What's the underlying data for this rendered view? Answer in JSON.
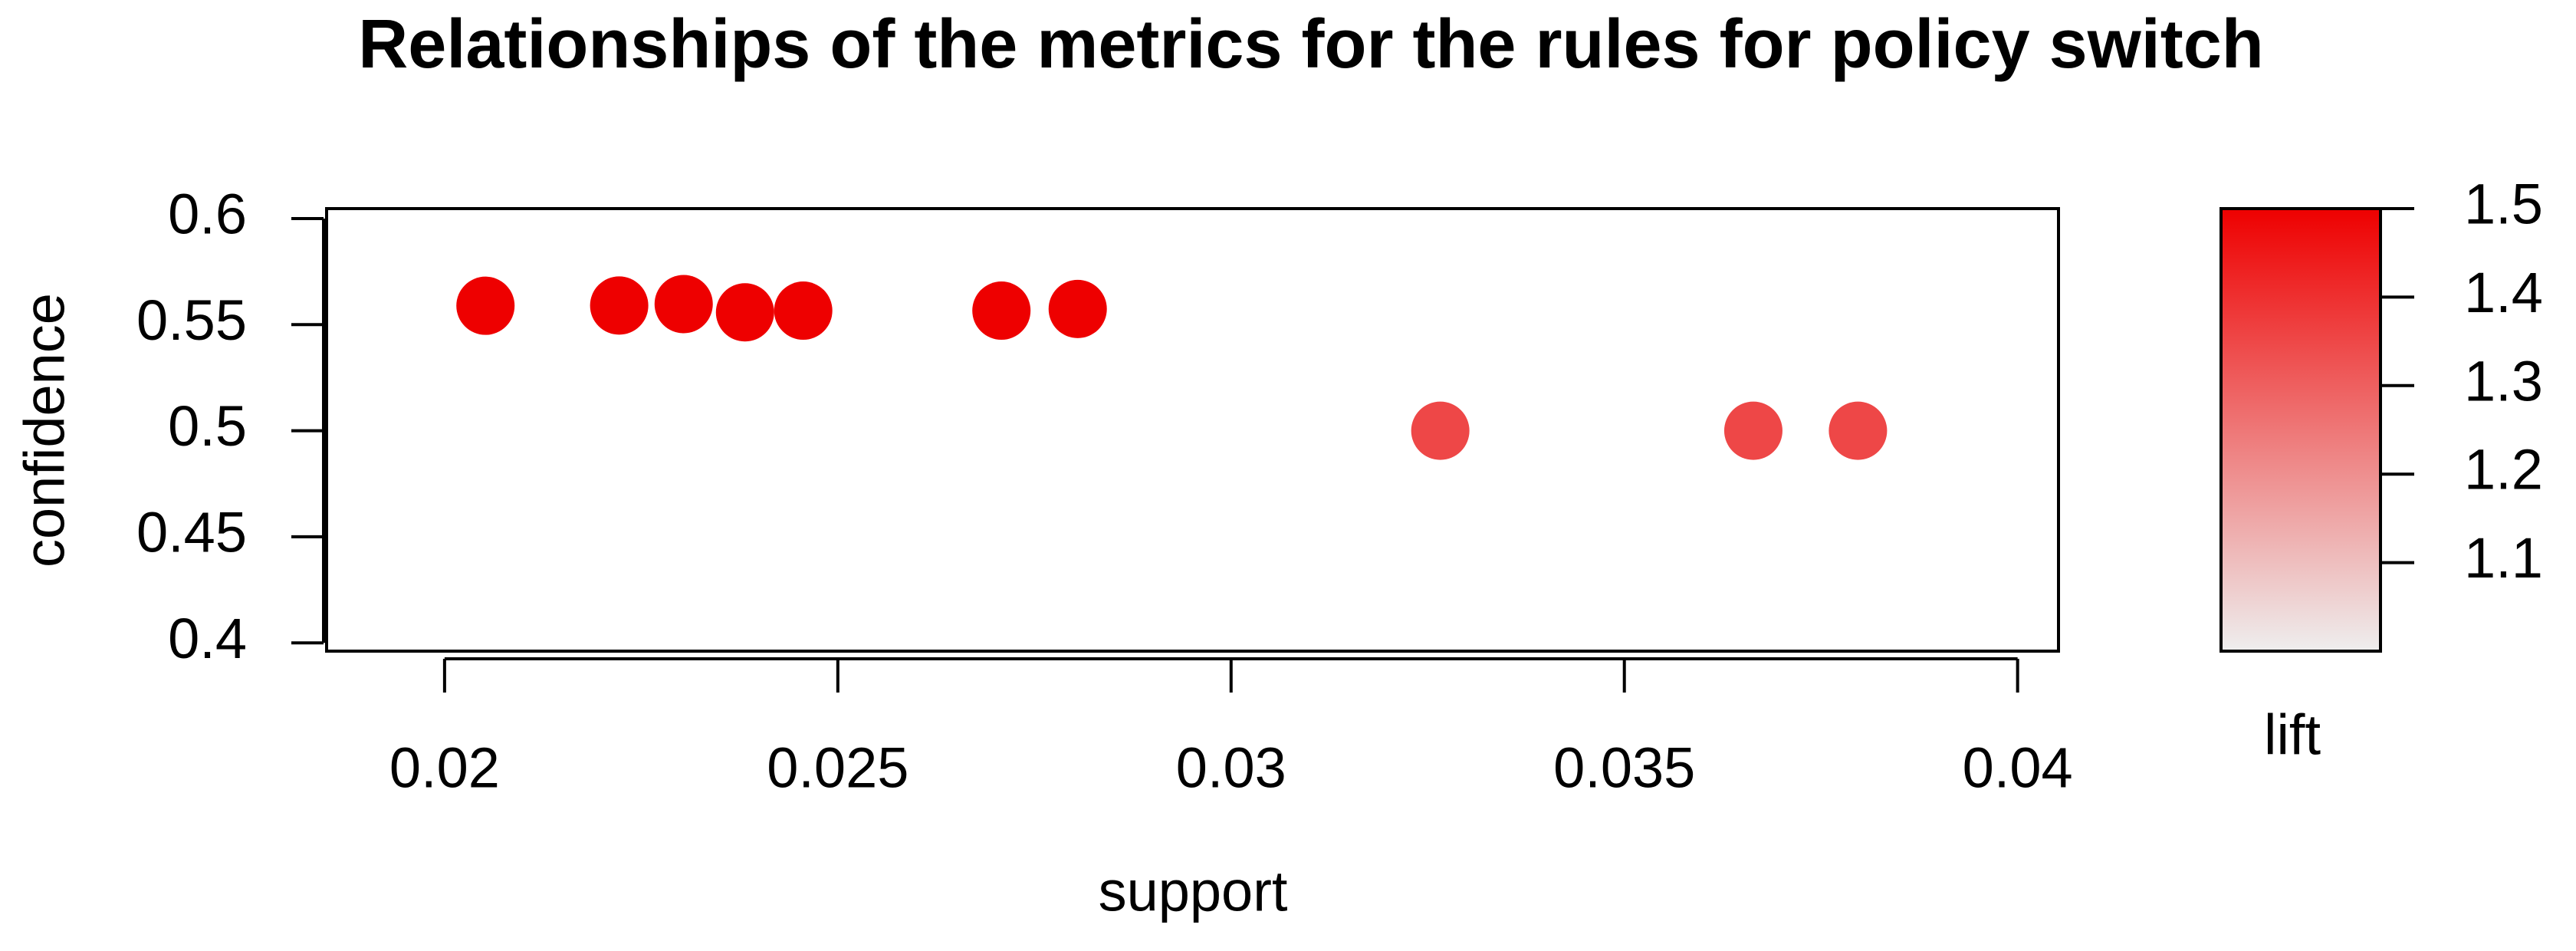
{
  "chart_data": {
    "type": "scatter",
    "title": "Relationships of the metrics for the rules for policy switch",
    "x_label": "support",
    "y_label": "confidence",
    "color_label": "lift",
    "x": [
      0.02052,
      0.02222,
      0.02304,
      0.02382,
      0.02456,
      0.02708,
      0.02805,
      0.03266,
      0.03664,
      0.03797
    ],
    "series": [
      {
        "name": "confidence",
        "values": [
          0.5589,
          0.559,
          0.5597,
          0.5558,
          0.5566,
          0.5566,
          0.5574,
          0.5,
          0.5,
          0.5
        ],
        "lift": [
          1.5,
          1.5,
          1.5,
          1.5,
          1.5,
          1.5,
          1.5,
          1.35,
          1.35,
          1.35
        ]
      }
    ],
    "xlim": [
      0.0185,
      0.04052
    ],
    "xticks": [
      0.02,
      0.025,
      0.03,
      0.035,
      0.04
    ],
    "ylim": [
      0.3961,
      0.6047
    ],
    "yticks": [
      0.4,
      0.45,
      0.5,
      0.55,
      0.6
    ],
    "zlim": [
      1.0,
      1.5
    ],
    "zticks": [
      1.1,
      1.2,
      1.3,
      1.4,
      1.5
    ],
    "low_color": "#eeeeee",
    "high_color": "#ee0000"
  }
}
